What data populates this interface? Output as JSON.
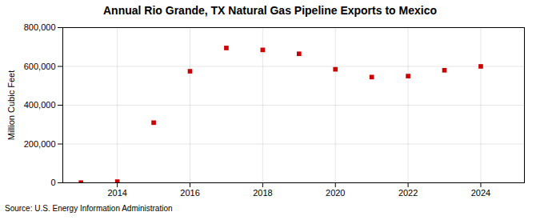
{
  "chart_data": {
    "type": "scatter",
    "title": "Annual Rio Grande, TX  Natural Gas Pipeline Exports to Mexico",
    "y_label": "Million Cubic Feet",
    "annotation": "Source: U.S. Energy Information Administration",
    "x": [
      2013,
      2014,
      2015,
      2016,
      2017,
      2018,
      2019,
      2020,
      2021,
      2022,
      2023,
      2024
    ],
    "values": [
      1000,
      6000,
      310000,
      575000,
      695000,
      685000,
      665000,
      585000,
      545000,
      550000,
      580000,
      600000
    ],
    "color": "#cc0000",
    "marker": "square",
    "xlim": [
      2012.5,
      2025.2
    ],
    "xticks": [
      2014,
      2016,
      2018,
      2020,
      2022,
      2024
    ],
    "ylim": [
      0,
      800000
    ],
    "yticks": [
      0,
      {
        "value": 200000,
        "label": "200,000"
      },
      {
        "value": 400000,
        "label": "400,000"
      },
      {
        "value": 600000,
        "label": "600,000"
      },
      {
        "value": 800000,
        "label": "800,000"
      }
    ],
    "grid": true
  }
}
